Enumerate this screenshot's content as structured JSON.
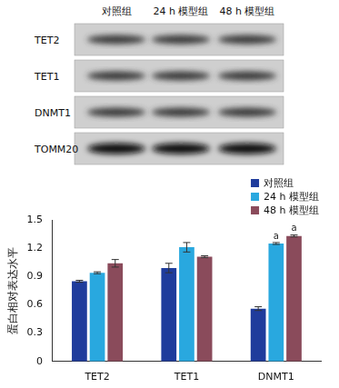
{
  "blot": {
    "columns": [
      "对照组",
      "24 h 模型组",
      "48 h 模型组"
    ],
    "rows": [
      "TET2",
      "TET1",
      "DNMT1",
      "TOMM20"
    ]
  },
  "chart_data": {
    "type": "bar",
    "y_label": "蛋白相对表达水平",
    "categories": [
      "TET2",
      "TET1",
      "DNMT1"
    ],
    "series": [
      {
        "name": "对照组",
        "color": "#1f3c9c",
        "values": [
          0.85,
          0.99,
          0.56
        ],
        "errors": [
          0.01,
          0.05,
          0.02
        ],
        "annotations": [
          null,
          null,
          null
        ]
      },
      {
        "name": "24 h 模型组",
        "color": "#29a8df",
        "values": [
          0.94,
          1.21,
          1.25
        ],
        "errors": [
          0.01,
          0.05,
          0.01
        ],
        "annotations": [
          null,
          null,
          "a"
        ]
      },
      {
        "name": "48 h 模型组",
        "color": "#8a4b5b",
        "values": [
          1.04,
          1.11,
          1.33
        ],
        "errors": [
          0.04,
          0.01,
          0.01
        ],
        "annotations": [
          null,
          null,
          "a"
        ]
      }
    ],
    "ylim": [
      0,
      1.5
    ],
    "yticks": [
      0,
      0.3,
      0.6,
      0.9,
      1.2,
      1.5
    ],
    "grid": false,
    "legend": "top-right"
  }
}
